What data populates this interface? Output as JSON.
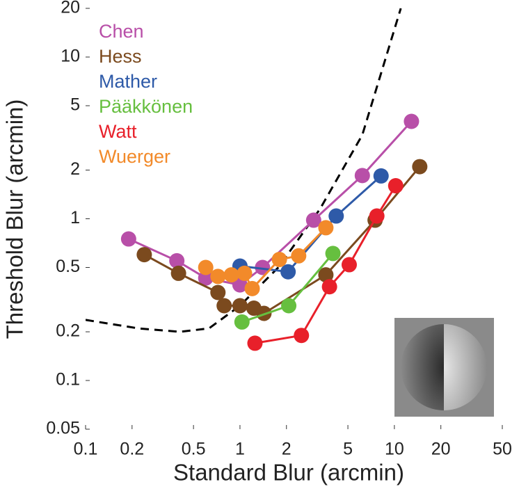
{
  "chart_data": {
    "type": "line",
    "xlabel": "Standard Blur (arcmin)",
    "ylabel": "Threshold Blur (arcmin)",
    "xscale": "log",
    "yscale": "log",
    "xlim": [
      0.1,
      50
    ],
    "ylim": [
      0.05,
      20
    ],
    "xticks": [
      0.1,
      0.2,
      0.5,
      1,
      2,
      5,
      10,
      20,
      50
    ],
    "yticks": [
      0.05,
      0.1,
      0.2,
      0.5,
      1,
      2,
      5,
      10,
      20
    ],
    "legend": "top-left",
    "series": [
      {
        "name": "Chen",
        "color": "#b84fa8",
        "x": [
          0.19,
          0.39,
          0.6,
          1.0,
          1.4,
          3.0,
          6.2,
          12.9
        ],
        "values": [
          0.75,
          0.55,
          0.43,
          0.39,
          0.5,
          0.98,
          1.85,
          4.0
        ]
      },
      {
        "name": "Hess",
        "color": "#7b4a1e",
        "x": [
          0.24,
          0.4,
          0.72,
          0.79,
          1.0,
          1.23,
          1.43,
          3.6,
          7.5,
          14.6
        ],
        "values": [
          0.6,
          0.46,
          0.35,
          0.29,
          0.29,
          0.28,
          0.26,
          0.45,
          0.98,
          2.1
        ]
      },
      {
        "name": "Mather",
        "color": "#2e5aa8",
        "x": [
          1.0,
          2.05,
          4.2,
          8.2
        ],
        "values": [
          0.51,
          0.47,
          1.04,
          1.84
        ]
      },
      {
        "name": "Pääkkönen",
        "color": "#66bf3f",
        "x": [
          1.03,
          2.07,
          4.0
        ],
        "values": [
          0.23,
          0.29,
          0.61
        ]
      },
      {
        "name": "Watt",
        "color": "#e8202a",
        "x": [
          1.25,
          2.5,
          3.8,
          5.1,
          7.7,
          10.2
        ],
        "values": [
          0.17,
          0.19,
          0.38,
          0.52,
          1.04,
          1.6
        ]
      },
      {
        "name": "Wuerger",
        "color": "#f28a2a",
        "x": [
          0.6,
          0.72,
          0.88,
          1.07,
          1.2,
          1.8,
          2.4,
          3.6
        ],
        "values": [
          0.5,
          0.44,
          0.45,
          0.46,
          0.37,
          0.56,
          0.59,
          0.88
        ]
      }
    ],
    "curve": {
      "color": "#000000",
      "x": [
        0.1,
        0.22,
        0.41,
        0.63,
        1.0,
        1.77,
        3.3,
        6.2,
        11
      ],
      "values": [
        0.237,
        0.21,
        0.2,
        0.21,
        0.29,
        0.5,
        1.15,
        3.3,
        20
      ]
    }
  }
}
